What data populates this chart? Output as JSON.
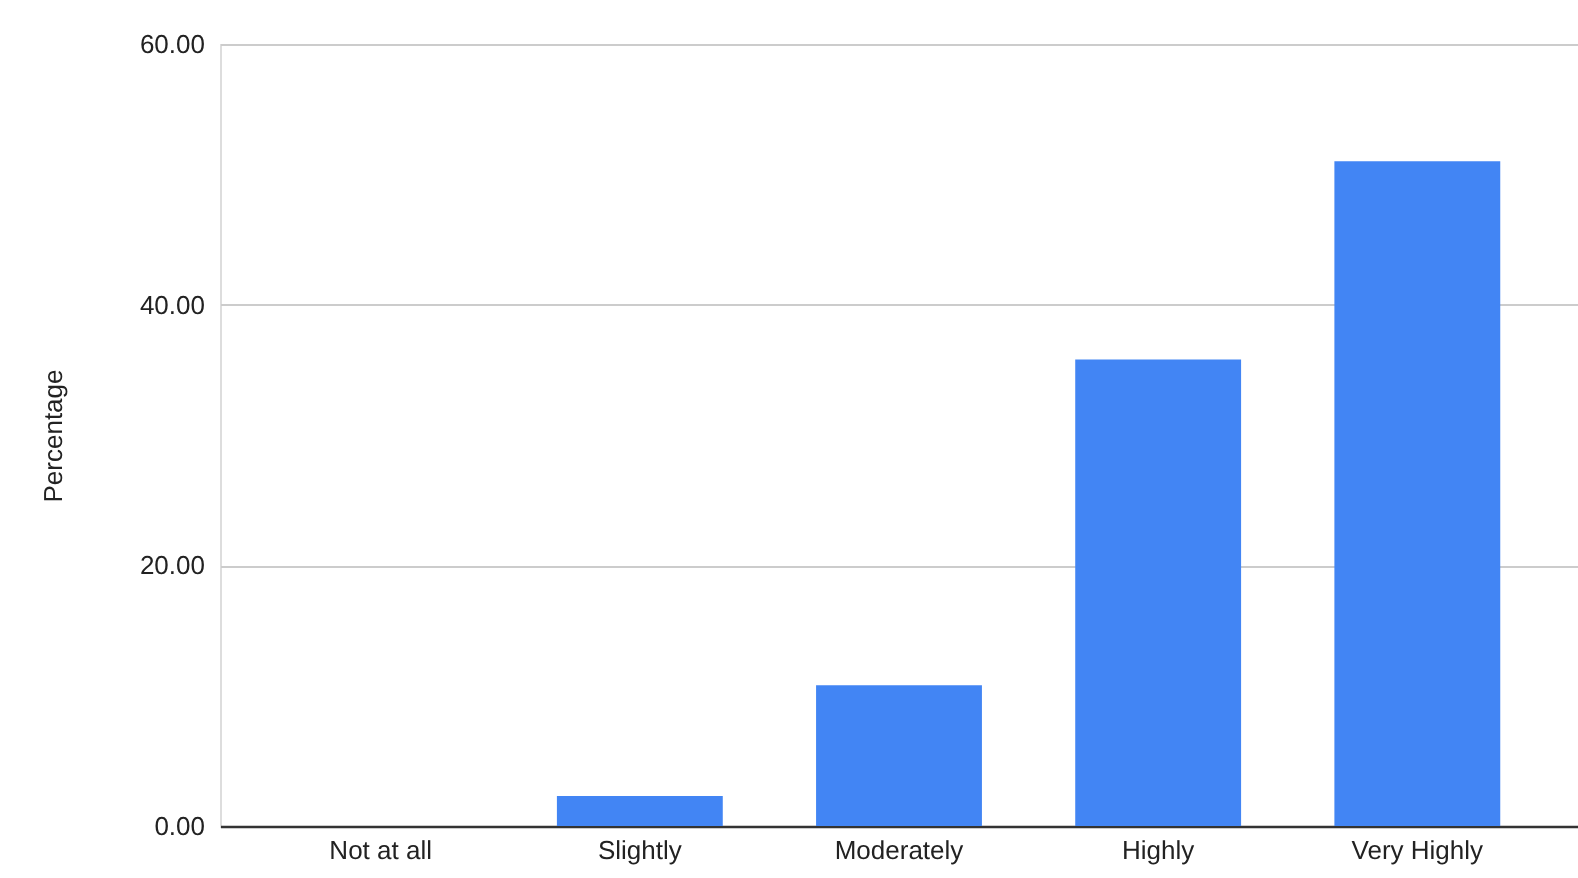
{
  "chart_data": {
    "type": "bar",
    "ylabel": "Percentage",
    "categories": [
      "Not at all",
      "Slightly",
      "Moderately",
      "Highly",
      "Very Highly"
    ],
    "values": [
      0,
      2.3,
      10.8,
      35.8,
      51.0
    ],
    "color": "#4285f4",
    "ylim": [
      0,
      60
    ],
    "yticks": [
      {
        "value": 0,
        "label": "0.00"
      },
      {
        "value": 20,
        "label": "20.00"
      },
      {
        "value": 40,
        "label": "40.00"
      },
      {
        "value": 60,
        "label": "60.00"
      }
    ],
    "grid": "y"
  }
}
